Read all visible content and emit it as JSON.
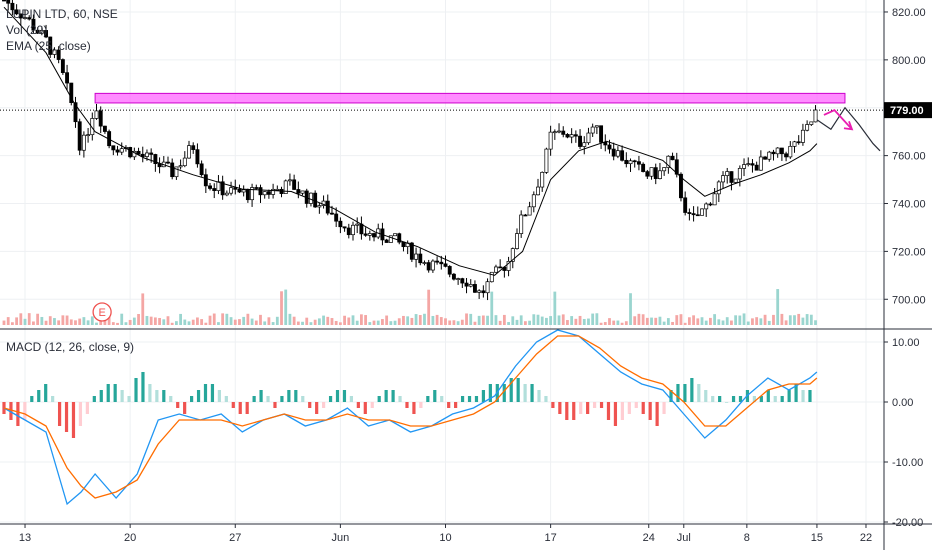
{
  "symbol_title": "LUPIN LTD, 60, NSE",
  "legends": {
    "vol": "Vol (20)",
    "ema": "EMA (25, close)",
    "macd": "MACD (12, 26, close, 9)"
  },
  "earnings_marker": "E",
  "colors": {
    "up": "#26a69a",
    "down": "#ef5350",
    "zone": "#ff66ff",
    "zone_border": "#cc00cc",
    "arrow": "#e91eb0",
    "macd_line": "#2196f3",
    "signal_line": "#ff6d00",
    "ema": "#000000"
  },
  "chart_data": [
    {
      "type": "candlestick",
      "title": "LUPIN LTD, 60, NSE",
      "x_ticks": [
        "13",
        "20",
        "27",
        "Jun",
        "10",
        "17",
        "24",
        "Jul",
        "8",
        "15",
        "22"
      ],
      "y_ticks": [
        "820.00",
        "800.00",
        "780.00",
        "760.00",
        "740.00",
        "720.00",
        "700.00"
      ],
      "ylim": [
        688,
        825
      ],
      "price_label": "779.00",
      "last_price": 779.0,
      "resistance_zone": [
        782,
        786
      ],
      "price_path": [
        [
          0,
          825
        ],
        [
          3,
          818
        ],
        [
          6,
          808
        ],
        [
          8,
          797
        ],
        [
          10,
          778
        ],
        [
          11,
          762
        ],
        [
          12,
          771
        ],
        [
          13,
          782
        ],
        [
          15,
          765
        ],
        [
          18,
          762
        ],
        [
          21,
          758
        ],
        [
          24,
          753
        ],
        [
          27,
          764
        ],
        [
          29,
          748
        ],
        [
          32,
          745
        ],
        [
          35,
          744
        ],
        [
          38,
          745
        ],
        [
          41,
          748
        ],
        [
          43,
          743
        ],
        [
          46,
          738
        ],
        [
          49,
          730
        ],
        [
          52,
          727
        ],
        [
          55,
          726
        ],
        [
          58,
          720
        ],
        [
          60,
          716
        ],
        [
          63,
          712
        ],
        [
          66,
          708
        ],
        [
          68,
          702
        ],
        [
          70,
          710
        ],
        [
          72,
          716
        ],
        [
          73,
          728
        ],
        [
          75,
          740
        ],
        [
          77,
          755
        ],
        [
          78,
          768
        ],
        [
          80,
          770
        ],
        [
          82,
          765
        ],
        [
          84,
          772
        ],
        [
          86,
          765
        ],
        [
          88,
          760
        ],
        [
          90,
          755
        ],
        [
          92,
          752
        ],
        [
          94,
          753
        ],
        [
          95,
          760
        ],
        [
          97,
          740
        ],
        [
          98,
          732
        ],
        [
          100,
          738
        ],
        [
          102,
          748
        ],
        [
          104,
          752
        ],
        [
          106,
          755
        ],
        [
          108,
          757
        ],
        [
          110,
          760
        ],
        [
          112,
          762
        ],
        [
          114,
          768
        ],
        [
          115,
          773
        ],
        [
          116,
          779
        ]
      ],
      "ema_path": [
        [
          0,
          822
        ],
        [
          6,
          803
        ],
        [
          10,
          782
        ],
        [
          13,
          770
        ],
        [
          20,
          759
        ],
        [
          27,
          752
        ],
        [
          34,
          746
        ],
        [
          41,
          745
        ],
        [
          47,
          738
        ],
        [
          53,
          728
        ],
        [
          59,
          722
        ],
        [
          65,
          714
        ],
        [
          70,
          710
        ],
        [
          74,
          720
        ],
        [
          78,
          750
        ],
        [
          82,
          762
        ],
        [
          86,
          766
        ],
        [
          90,
          762
        ],
        [
          94,
          758
        ],
        [
          97,
          750
        ],
        [
          100,
          743
        ],
        [
          104,
          748
        ],
        [
          108,
          752
        ],
        [
          112,
          757
        ],
        [
          115,
          762
        ],
        [
          116,
          765
        ]
      ],
      "forecast_path": [
        [
          116,
          775
        ],
        [
          118,
          771
        ],
        [
          120,
          780
        ],
        [
          122,
          773
        ],
        [
          124,
          765
        ],
        [
          125,
          762
        ]
      ],
      "volume_note": "Vol (20)"
    },
    {
      "type": "line",
      "title": "MACD (12, 26, close, 9)",
      "y_ticks": [
        "10.00",
        "0.00",
        "-10.00",
        "-20.00"
      ],
      "ylim": [
        -20,
        12
      ],
      "series": [
        {
          "name": "MACD",
          "x": [
            0,
            3,
            6,
            9,
            11,
            13,
            16,
            19,
            22,
            25,
            28,
            31,
            34,
            37,
            40,
            43,
            46,
            49,
            52,
            55,
            58,
            61,
            64,
            67,
            70,
            73,
            76,
            79,
            82,
            85,
            88,
            91,
            94,
            97,
            100,
            103,
            106,
            109,
            112,
            115,
            116
          ],
          "values": [
            -1,
            -3,
            -5,
            -17,
            -15,
            -12,
            -16,
            -12,
            -3,
            -2,
            -3,
            -2,
            -5,
            -3,
            -2,
            -4,
            -3,
            -1,
            -4,
            -3,
            -5,
            -4,
            -2,
            -1,
            1,
            6,
            10,
            12,
            11,
            8,
            5,
            3,
            2,
            -2,
            -6,
            -3,
            1,
            4,
            2,
            4,
            5
          ]
        },
        {
          "name": "Signal",
          "x": [
            0,
            3,
            6,
            9,
            11,
            13,
            16,
            19,
            22,
            25,
            28,
            31,
            34,
            37,
            40,
            43,
            46,
            49,
            52,
            55,
            58,
            61,
            64,
            67,
            70,
            73,
            76,
            79,
            82,
            85,
            88,
            91,
            94,
            97,
            100,
            103,
            106,
            109,
            112,
            115,
            116
          ],
          "values": [
            -1,
            -2,
            -4,
            -11,
            -14,
            -16,
            -15,
            -13,
            -7,
            -3,
            -3,
            -3,
            -4,
            -3,
            -2,
            -3,
            -3,
            -2,
            -3,
            -3,
            -4,
            -4,
            -3,
            -2,
            0,
            4,
            8,
            11,
            11,
            9,
            6,
            4,
            3,
            0,
            -4,
            -4,
            -1,
            2,
            3,
            3,
            4
          ]
        }
      ],
      "histogram": [
        -2,
        -3,
        -4,
        -3,
        1,
        2,
        3,
        1,
        -4,
        -5,
        -6,
        -4,
        -2,
        1,
        2,
        3,
        3,
        2,
        1,
        4,
        5,
        3,
        2,
        2,
        1,
        -1,
        -2,
        1,
        2,
        3,
        3,
        2,
        1,
        -1,
        -2,
        -2,
        1,
        2,
        1,
        -1,
        1,
        2,
        2,
        1,
        -1,
        -2,
        -1,
        1,
        2,
        2,
        1,
        -1,
        -2,
        -1,
        1,
        2,
        2,
        1,
        -1,
        -2,
        -1,
        1,
        2,
        1,
        -1,
        -1,
        1,
        1,
        1,
        2,
        3,
        3,
        3,
        4,
        4,
        3,
        3,
        2,
        1,
        -1,
        -2,
        -3,
        -3,
        -2,
        -2,
        -1,
        -1,
        -3,
        -4,
        -3,
        -2,
        -1,
        -2,
        -3,
        -4,
        -2,
        2,
        3,
        3,
        4,
        3,
        2,
        1,
        1,
        0,
        1,
        1,
        2,
        1,
        1,
        2,
        1,
        1,
        2,
        3,
        2,
        2
      ]
    }
  ]
}
